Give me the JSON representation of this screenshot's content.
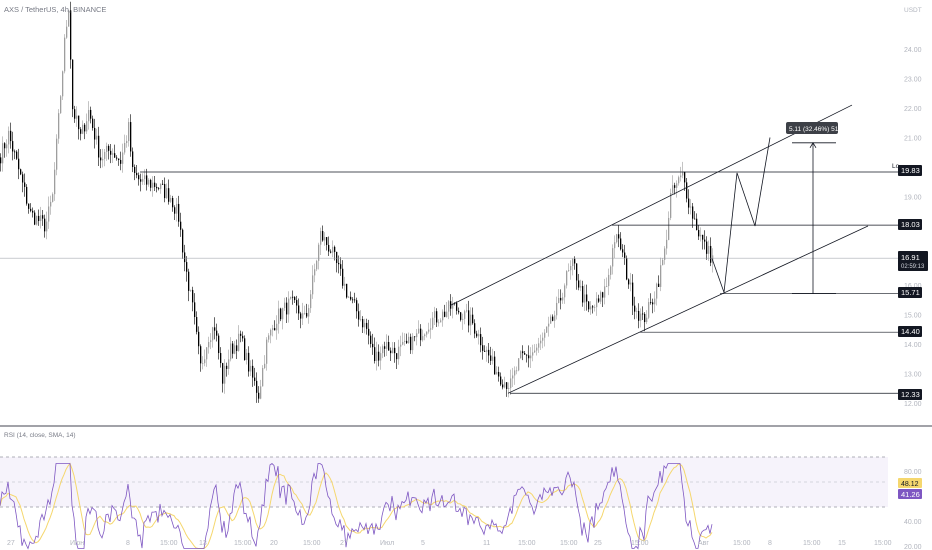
{
  "header": {
    "symbol": "AXS / TetherUS, 4h, BINANCE"
  },
  "price_axis": {
    "unit": "USDT",
    "ticks": [
      24.0,
      23.0,
      22.0,
      21.0,
      20.0,
      19.0,
      18.0,
      17.0,
      16.0,
      15.0,
      14.0,
      13.0,
      12.0
    ]
  },
  "rsi_axis": {
    "ticks": [
      80.0,
      60.0,
      40.0,
      20.0
    ]
  },
  "rsi_legend": {
    "text": "RSI (14, close, SMA, 14)"
  },
  "time_axis": {
    "labels": [
      "27",
      "Июн",
      "8",
      "15:00",
      "13",
      "15:00",
      "20",
      "15:00",
      "27",
      "Июл",
      "5",
      "11",
      "15:00",
      "15:00",
      "25",
      "15:00",
      "Авг",
      "15:00",
      "8",
      "15:00",
      "15",
      "15:00"
    ]
  },
  "badges": {
    "r1": "19.83",
    "r2": "18.03",
    "cur_price": "16.91",
    "countdown": "02:59:13",
    "s1": "15.71",
    "s2": "14.40",
    "s3": "12.33",
    "rsi_a": "48.12",
    "rsi_b": "41.26"
  },
  "measure": {
    "text": "5.11 (32.46%) 511"
  },
  "colors": {
    "candle_up": "#9e9e9e",
    "candle_down": "#000000",
    "rsi_line": "#7e57c2",
    "rsi_ma": "#f5d76e",
    "rsi_band": "#7e57c2"
  },
  "chart_data": {
    "type": "candlestick",
    "series": [
      {
        "name": "AXS / TetherUS",
        "timeframe": "4h"
      }
    ],
    "levels": [
      19.83,
      18.03,
      16.91,
      15.71,
      14.4,
      12.33
    ],
    "key_prices": {
      "high": 25.7,
      "low": 11.9,
      "channel_low": 12.33,
      "channel_high": 20.4
    },
    "yrange": [
      12.0,
      24.8
    ],
    "rsi": {
      "params": "14, close, SMA, 14",
      "range": [
        15,
        90
      ],
      "band": [
        30,
        70
      ],
      "last": [
        48.12,
        41.26
      ]
    }
  }
}
